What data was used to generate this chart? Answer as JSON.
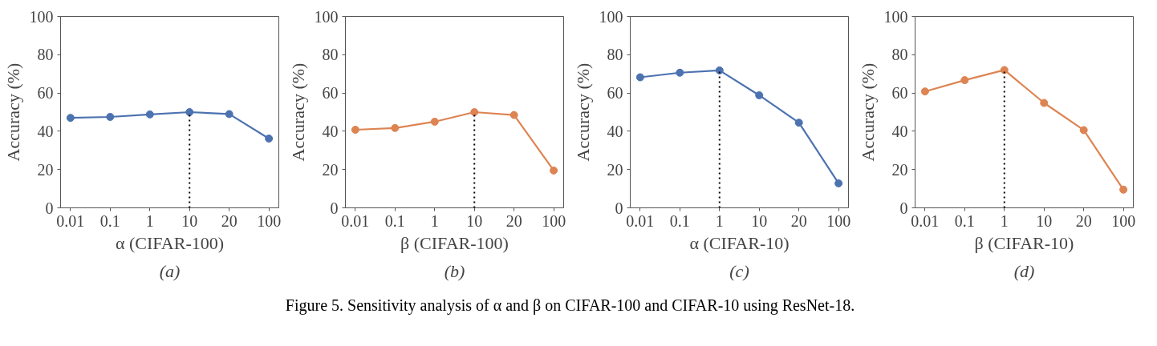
{
  "chart_data": [
    {
      "type": "line",
      "categories": [
        "0.01",
        "0.1",
        "1",
        "10",
        "20",
        "100"
      ],
      "series": [
        {
          "color": "#4c72b0",
          "values": [
            47,
            47.5,
            48.8,
            50,
            49,
            36.2
          ]
        }
      ],
      "xlabel": "α (CIFAR-100)",
      "ylabel": "Accuracy (%)",
      "ylim": [
        0,
        100
      ],
      "yticks": [
        0,
        20,
        40,
        60,
        80,
        100
      ],
      "marker": "circle",
      "grid": false,
      "ref_lines": [
        {
          "axis": "x",
          "value": "10",
          "line_style": "dotted",
          "color": "#000000"
        }
      ],
      "annotations": [
        "(a)",
        "Figure 5. Sensitivity analysis of α and β on CIFAR-100 and CIFAR-10 using ResNet-18."
      ]
    },
    {
      "type": "line",
      "categories": [
        "0.01",
        "0.1",
        "1",
        "10",
        "20",
        "100"
      ],
      "series": [
        {
          "color": "#dd8452",
          "values": [
            40.8,
            41.7,
            45,
            50,
            48.5,
            19.5
          ]
        }
      ],
      "xlabel": "β (CIFAR-100)",
      "ylabel": "Accuracy (%)",
      "ylim": [
        0,
        100
      ],
      "yticks": [
        0,
        20,
        40,
        60,
        80,
        100
      ],
      "marker": "circle",
      "grid": false,
      "ref_lines": [
        {
          "axis": "x",
          "value": "10",
          "line_style": "dotted",
          "color": "#000000"
        }
      ],
      "annotations": [
        "(b)"
      ]
    },
    {
      "type": "line",
      "categories": [
        "0.01",
        "0.1",
        "1",
        "10",
        "20",
        "100"
      ],
      "series": [
        {
          "color": "#4c72b0",
          "values": [
            68.2,
            70.6,
            71.8,
            58.8,
            44.5,
            12.8
          ]
        }
      ],
      "xlabel": "α (CIFAR-10)",
      "ylabel": "Accuracy (%)",
      "ylim": [
        0,
        100
      ],
      "yticks": [
        0,
        20,
        40,
        60,
        80,
        100
      ],
      "marker": "circle",
      "grid": false,
      "ref_lines": [
        {
          "axis": "x",
          "value": "1",
          "line_style": "dotted",
          "color": "#000000"
        }
      ],
      "annotations": [
        "(c)"
      ]
    },
    {
      "type": "line",
      "categories": [
        "0.01",
        "0.1",
        "1",
        "10",
        "20",
        "100"
      ],
      "series": [
        {
          "color": "#dd8452",
          "values": [
            60.8,
            66.7,
            72,
            54.8,
            40.6,
            9.5
          ]
        }
      ],
      "xlabel": "β (CIFAR-10)",
      "ylabel": "Accuracy (%)",
      "ylim": [
        0,
        100
      ],
      "yticks": [
        0,
        20,
        40,
        60,
        80,
        100
      ],
      "marker": "circle",
      "grid": false,
      "ref_lines": [
        {
          "axis": "x",
          "value": "1",
          "line_style": "dotted",
          "color": "#000000"
        }
      ],
      "annotations": [
        "(d)"
      ]
    }
  ]
}
